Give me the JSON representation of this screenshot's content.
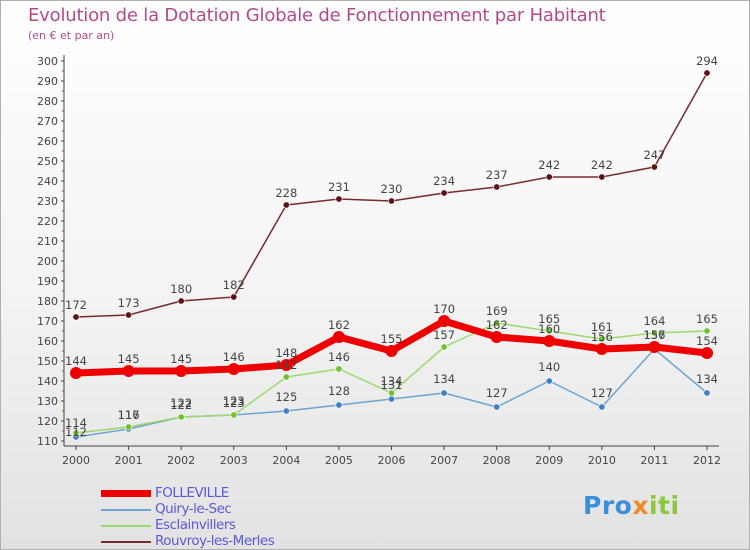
{
  "header": {
    "title": "Evolution de la Dotation Globale de Fonctionnement par Habitant",
    "subtitle": "(en € et par an)"
  },
  "logo": {
    "part1": "Pro",
    "part2": "x",
    "part3": "iti"
  },
  "chart_data": {
    "type": "line",
    "title": "Evolution de la Dotation Globale de Fonctionnement par Habitant",
    "subtitle": "(en € et par an)",
    "xlabel": "",
    "ylabel": "",
    "ylim": [
      110,
      300
    ],
    "ytick_step": 10,
    "grid": false,
    "legend_position": "bottom-left",
    "categories": [
      "2000",
      "2001",
      "2002",
      "2003",
      "2004",
      "2005",
      "2006",
      "2007",
      "2008",
      "2009",
      "2010",
      "2011",
      "2012"
    ],
    "series": [
      {
        "name": "FOLLEVILLE",
        "color": "#ee0000",
        "marker": "#ee0000",
        "values": [
          144,
          145,
          145,
          146,
          148,
          162,
          155,
          170,
          162,
          160,
          156,
          157,
          154
        ]
      },
      {
        "name": "Quiry-le-Sec",
        "color": "#6fa3d3",
        "marker": "#3f80c4",
        "values": [
          112,
          116,
          122,
          123,
          125,
          128,
          131,
          134,
          127,
          140,
          127,
          156,
          134
        ]
      },
      {
        "name": "Esclainvillers",
        "color": "#9bd86e",
        "marker": "#70c030",
        "values": [
          114,
          117,
          122,
          123,
          142,
          146,
          134,
          157,
          169,
          165,
          161,
          164,
          165
        ]
      },
      {
        "name": "Rouvroy-les-Merles",
        "color": "#7a2a2a",
        "marker": "#5c1515",
        "values": [
          172,
          173,
          180,
          182,
          228,
          231,
          230,
          234,
          237,
          242,
          242,
          247,
          294
        ]
      }
    ]
  }
}
